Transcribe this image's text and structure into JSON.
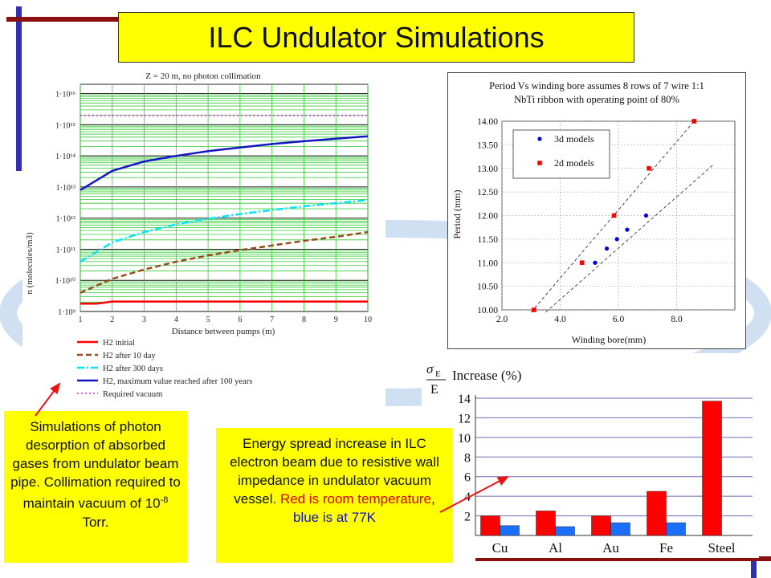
{
  "title": "ILC Undulator Simulations",
  "notes": {
    "left": {
      "line1": "Simulations of photon desorption of absorbed gases from undulator beam pipe. Collimation required to maintain vacuum of",
      "value": "10",
      "exp": "-8",
      "unit": " Torr."
    },
    "middle": {
      "text": "Energy spread increase in ILC electron beam due to resistive wall impedance in undulator vacuum vessel.",
      "red": "Red is room temperature",
      "comma": ",",
      "blue": "blue is at 77K"
    }
  },
  "chart_data": [
    {
      "type": "line",
      "title": "Z = 20 m, no photon collimation",
      "xlabel": "Distance between pumps (m)",
      "ylabel": "n (molecules/m3)",
      "x_ticks": [
        "1",
        "2",
        "3",
        "4",
        "5",
        "6",
        "7",
        "8",
        "9",
        "10"
      ],
      "y_ticks": [
        "1·10⁹",
        "1·10¹⁰",
        "1·10¹¹",
        "1·10¹²",
        "1·10¹³",
        "1·10¹⁴",
        "1·10¹⁵",
        "1·10¹⁶"
      ],
      "y_scale": "log",
      "xlim": [
        1,
        10
      ],
      "ylim_log10": [
        9,
        16.3
      ],
      "grid": true,
      "legend_position": "below",
      "series": [
        {
          "name": "H2 initial",
          "color": "#ff0000",
          "style": "solid",
          "x": [
            1,
            1.5,
            2,
            10
          ],
          "log10_y": [
            9.25,
            9.25,
            9.32,
            9.32
          ]
        },
        {
          "name": "H2 after 10 day",
          "color": "#9a4a1a",
          "style": "dashed",
          "x": [
            1,
            2,
            3,
            4,
            5,
            6,
            7,
            8,
            9,
            10
          ],
          "log10_y": [
            9.6,
            10.05,
            10.35,
            10.6,
            10.8,
            10.97,
            11.12,
            11.27,
            11.4,
            11.55
          ]
        },
        {
          "name": "H2 after 300 days",
          "color": "#00e5ff",
          "style": "dashdot",
          "x": [
            1,
            2,
            3,
            4,
            5,
            6,
            7,
            8,
            9,
            10
          ],
          "log10_y": [
            10.6,
            11.22,
            11.55,
            11.8,
            11.98,
            12.13,
            12.26,
            12.38,
            12.48,
            12.58
          ]
        },
        {
          "name": "H2, maximum value reached after 100 years",
          "color": "#1515c8",
          "style": "solid",
          "x": [
            1,
            2,
            3,
            4,
            5,
            6,
            7,
            8,
            9,
            10
          ],
          "log10_y": [
            12.9,
            13.52,
            13.82,
            14.0,
            14.15,
            14.27,
            14.38,
            14.47,
            14.55,
            14.63
          ]
        },
        {
          "name": "Required vacuum",
          "color": "#e040e0",
          "style": "dotted",
          "x": [
            1,
            10
          ],
          "log10_y": [
            15.3,
            15.3
          ]
        }
      ]
    },
    {
      "type": "scatter",
      "title": "Period Vs winding bore assumes 8 rows of 7 wire 1:1\nNbTi ribbon with operating point of 80%",
      "title_lines": [
        "Period Vs winding bore assumes 8 rows of 7 wire 1:1",
        "NbTi ribbon with operating point of 80%"
      ],
      "xlabel": "Winding bore(mm)",
      "ylabel": "Period (mm)",
      "xlim": [
        2.0,
        10.0
      ],
      "ylim": [
        10.0,
        14.0
      ],
      "x_ticks": [
        "2.0",
        "4.0",
        "6.0",
        "8.0"
      ],
      "y_ticks": [
        "10.00",
        "10.50",
        "11.00",
        "11.50",
        "12.00",
        "12.50",
        "13.00",
        "13.50",
        "14.00"
      ],
      "legend_position": "top-left",
      "series": [
        {
          "name": "3d models",
          "color": "#0000dd",
          "marker": "circle",
          "x": [
            5.2,
            5.6,
            5.95,
            6.3,
            6.95
          ],
          "y": [
            11.0,
            11.3,
            11.5,
            11.7,
            12.0
          ]
        },
        {
          "name": "2d models",
          "color": "#ff0000",
          "marker": "square",
          "x": [
            3.1,
            4.75,
            5.85,
            7.05,
            8.6
          ],
          "y": [
            10.0,
            11.0,
            12.0,
            13.0,
            14.0
          ]
        }
      ],
      "trendlines": [
        {
          "x": [
            3.0,
            8.6
          ],
          "y": [
            9.95,
            14.0
          ]
        },
        {
          "x": [
            3.5,
            9.3
          ],
          "y": [
            9.95,
            13.1
          ]
        }
      ]
    },
    {
      "type": "bar",
      "ylabel_symbol": "σ",
      "ylabel_sub": "E",
      "ylabel_den": "E",
      "ylabel": "Increase (%)",
      "categories": [
        "Cu",
        "Al",
        "Au",
        "Fe",
        "Steel"
      ],
      "ylim": [
        0,
        14
      ],
      "y_ticks": [
        "2",
        "4",
        "6",
        "8",
        "10",
        "12",
        "14"
      ],
      "series": [
        {
          "name": "",
          "color": "#ff0000",
          "values": [
            2.0,
            2.5,
            2.0,
            4.5,
            13.7
          ]
        },
        {
          "name": "",
          "color": "#1a6fff",
          "values": [
            1.0,
            0.9,
            1.3,
            1.3,
            null
          ]
        }
      ]
    }
  ]
}
